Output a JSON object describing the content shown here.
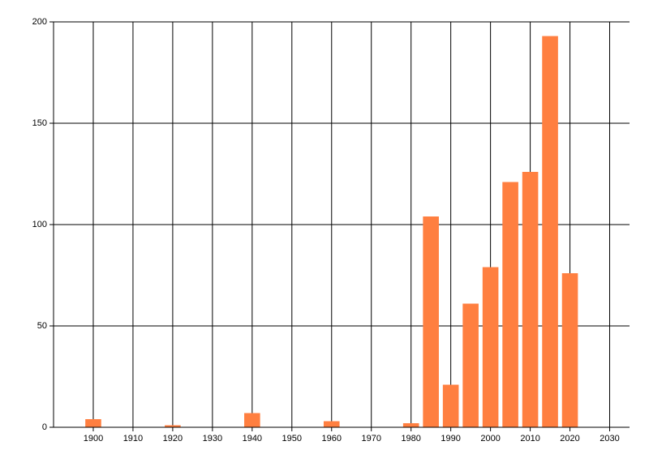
{
  "chart_data": {
    "type": "bar",
    "x": [
      1900,
      1920,
      1940,
      1960,
      1980,
      1985,
      1990,
      1995,
      2000,
      2005,
      2010,
      2015,
      2020
    ],
    "values": [
      4,
      1,
      7,
      3,
      2,
      104,
      21,
      61,
      79,
      121,
      126,
      193,
      76
    ],
    "color": "#ff7f40",
    "xlim": [
      1890,
      2035
    ],
    "xticks": [
      1900,
      1910,
      1920,
      1930,
      1940,
      1950,
      1960,
      1970,
      1980,
      1990,
      2000,
      2010,
      2020,
      2030
    ],
    "ylim": [
      0,
      200
    ],
    "yticks": [
      0,
      50,
      100,
      150,
      200
    ],
    "grid": true
  }
}
